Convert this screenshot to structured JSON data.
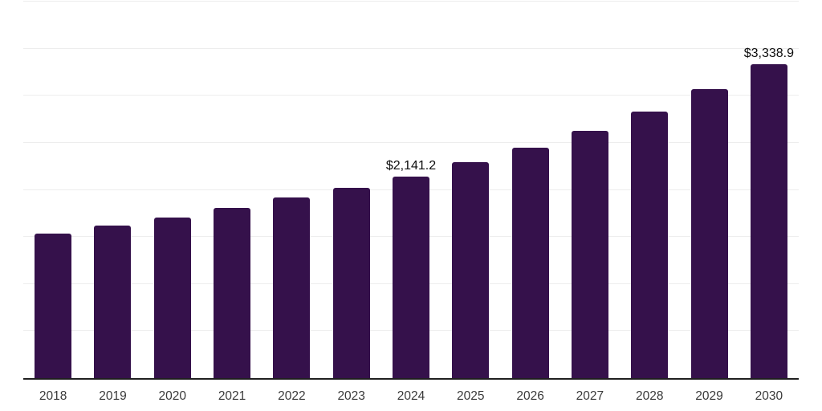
{
  "chart_data": {
    "type": "bar",
    "title": "",
    "xlabel": "",
    "ylabel": "",
    "categories": [
      "2018",
      "2019",
      "2020",
      "2021",
      "2022",
      "2023",
      "2024",
      "2025",
      "2026",
      "2027",
      "2028",
      "2029",
      "2030"
    ],
    "values": [
      1535,
      1620,
      1705,
      1805,
      1915,
      2020,
      2141.2,
      2295,
      2450,
      2625,
      2830,
      3070,
      3338.9
    ],
    "point_labels": {
      "2024": "$2,141.2",
      "2030": "$3,338.9"
    },
    "ylim": [
      0,
      4000
    ],
    "gridline_step": 500,
    "grid": true,
    "legend": false,
    "y_axis_labels_shown": false,
    "colors": {
      "bar": "#35114B",
      "axis": "#1f1f1f",
      "gridline": "#ededed",
      "tick_label": "#3a3a3a",
      "data_label": "#0d0d0d",
      "background": "#ffffff"
    }
  }
}
